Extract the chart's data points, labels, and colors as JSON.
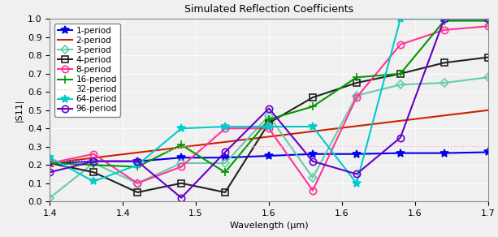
{
  "title": "Simulated Reflection Coefficients",
  "xlabel": "Wavelength (μm)",
  "ylabel": "|S11|",
  "xlim": [
    1.4,
    1.7
  ],
  "ylim": [
    0,
    1.0
  ],
  "xticks": [
    1.4,
    1.45,
    1.5,
    1.55,
    1.6,
    1.65,
    1.7
  ],
  "yticks": [
    0,
    0.1,
    0.2,
    0.3,
    0.4,
    0.5,
    0.6,
    0.7,
    0.8,
    0.9,
    1.0
  ],
  "series": [
    {
      "label": "1-period",
      "color": "#0000ee",
      "marker": "*",
      "markersize": 7,
      "linewidth": 1.5,
      "linestyle": "solid",
      "x": [
        1.4,
        1.43,
        1.46,
        1.49,
        1.52,
        1.55,
        1.58,
        1.61,
        1.64,
        1.67,
        1.7
      ],
      "y": [
        0.21,
        0.22,
        0.22,
        0.24,
        0.24,
        0.25,
        0.26,
        0.26,
        0.265,
        0.265,
        0.27
      ],
      "filled": true
    },
    {
      "label": "2-period",
      "color": "#cc2200",
      "marker": null,
      "markersize": 0,
      "linewidth": 1.5,
      "linestyle": "solid",
      "x": [
        1.4,
        1.7
      ],
      "y": [
        0.21,
        0.5
      ],
      "filled": false
    },
    {
      "label": "3-period",
      "color": "#66ccaa",
      "marker": "D",
      "markersize": 5,
      "linewidth": 1.5,
      "linestyle": "solid",
      "x": [
        1.4,
        1.43,
        1.46,
        1.49,
        1.52,
        1.55,
        1.58,
        1.61,
        1.64,
        1.67,
        1.7
      ],
      "y": [
        0.02,
        0.21,
        0.1,
        0.21,
        0.21,
        0.47,
        0.13,
        0.58,
        0.64,
        0.65,
        0.68
      ],
      "filled": false
    },
    {
      "label": "4-period",
      "color": "#222222",
      "marker": "s",
      "markersize": 6,
      "linewidth": 1.5,
      "linestyle": "solid",
      "x": [
        1.4,
        1.43,
        1.46,
        1.49,
        1.52,
        1.55,
        1.58,
        1.61,
        1.64,
        1.67,
        1.7
      ],
      "y": [
        0.21,
        0.16,
        0.05,
        0.1,
        0.05,
        0.43,
        0.57,
        0.65,
        0.7,
        0.76,
        0.79
      ],
      "filled": false
    },
    {
      "label": "8-period",
      "color": "#ff3399",
      "marker": "o",
      "markersize": 6,
      "linewidth": 1.5,
      "linestyle": "solid",
      "x": [
        1.4,
        1.43,
        1.46,
        1.49,
        1.52,
        1.55,
        1.58,
        1.61,
        1.64,
        1.67,
        1.7
      ],
      "y": [
        0.21,
        0.26,
        0.1,
        0.19,
        0.4,
        0.4,
        0.06,
        0.57,
        0.86,
        0.94,
        0.96
      ],
      "filled": false
    },
    {
      "label": "16-period",
      "color": "#009900",
      "marker": "+",
      "markersize": 7,
      "linewidth": 1.5,
      "linestyle": "solid",
      "x": [
        1.4,
        1.43,
        1.46,
        1.49,
        1.52,
        1.55,
        1.58,
        1.61,
        1.64,
        1.67,
        1.7
      ],
      "y": [
        0.21,
        0.2,
        0.19,
        0.31,
        0.16,
        0.45,
        0.52,
        0.68,
        0.7,
        0.99,
        0.99
      ],
      "filled": true
    },
    {
      "label": "32-period",
      "color": "#ffaacc",
      "marker": null,
      "markersize": 0,
      "linewidth": 1.0,
      "linestyle": "dotted",
      "x": [
        1.4,
        1.43,
        1.46,
        1.49,
        1.52,
        1.55,
        1.58,
        1.61,
        1.64,
        1.67,
        1.7
      ],
      "y": [
        0.22,
        0.22,
        0.22,
        0.3,
        0.3,
        0.3,
        0.3,
        0.3,
        0.3,
        0.3,
        0.3
      ],
      "filled": false
    },
    {
      "label": "64-period",
      "color": "#00cccc",
      "marker": "*",
      "markersize": 7,
      "linewidth": 1.5,
      "linestyle": "solid",
      "x": [
        1.4,
        1.43,
        1.46,
        1.49,
        1.52,
        1.55,
        1.58,
        1.61,
        1.64,
        1.67,
        1.7
      ],
      "y": [
        0.24,
        0.11,
        0.2,
        0.4,
        0.41,
        0.41,
        0.41,
        0.1,
        1.0,
        1.0,
        1.0
      ],
      "filled": true
    },
    {
      "label": "96-period",
      "color": "#6600cc",
      "marker": "o",
      "markersize": 6,
      "linewidth": 1.5,
      "linestyle": "solid",
      "x": [
        1.4,
        1.43,
        1.46,
        1.49,
        1.52,
        1.55,
        1.58,
        1.61,
        1.64,
        1.67,
        1.7
      ],
      "y": [
        0.16,
        0.22,
        0.22,
        0.02,
        0.27,
        0.51,
        0.22,
        0.15,
        0.35,
        1.0,
        1.0
      ],
      "filled": false
    }
  ],
  "bg_color": "#f0f0f0",
  "grid_color": "#ffffff",
  "legend_fontsize": 7.5,
  "title_fontsize": 9,
  "tick_fontsize": 8
}
